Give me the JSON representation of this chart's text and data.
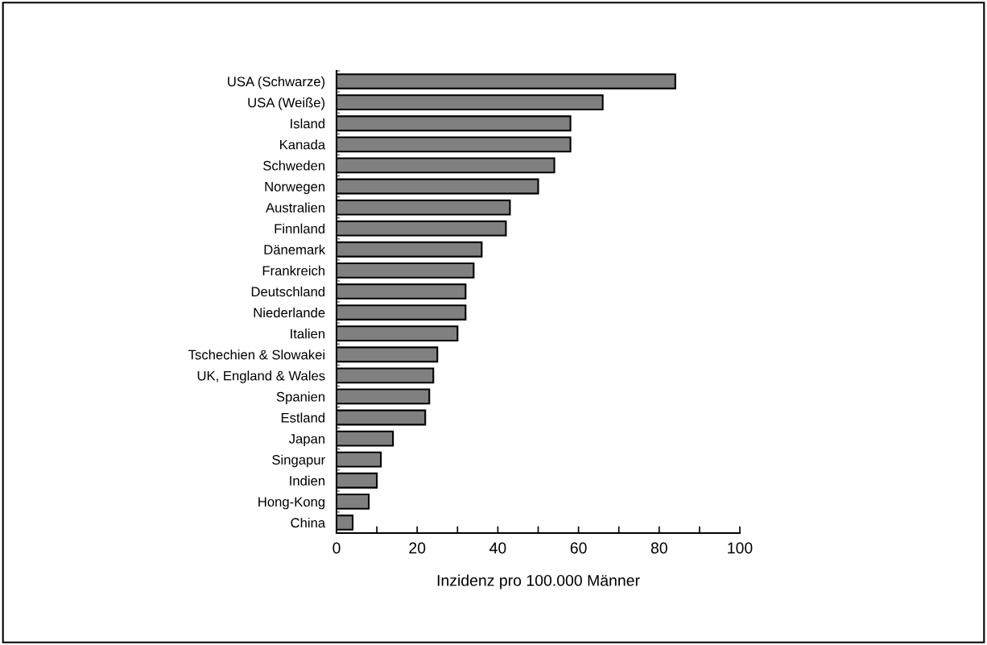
{
  "chart_data": {
    "type": "bar",
    "orientation": "horizontal",
    "xlabel": "Inzidenz pro 100.000 Männer",
    "categories": [
      "USA (Schwarze)",
      "USA (Weiße)",
      "Island",
      "Kanada",
      "Schweden",
      "Norwegen",
      "Australien",
      "Finnland",
      "Dänemark",
      "Frankreich",
      "Deutschland",
      "Niederlande",
      "Italien",
      "Tschechien & Slowakei",
      "UK, England & Wales",
      "Spanien",
      "Estland",
      "Japan",
      "Singapur",
      "Indien",
      "Hong-Kong",
      "China"
    ],
    "values": [
      84,
      66,
      58,
      58,
      54,
      50,
      43,
      42,
      36,
      34,
      32,
      32,
      30,
      25,
      24,
      23,
      22,
      14,
      11,
      10,
      8,
      4
    ],
    "color": "#808080",
    "xlim": [
      0,
      100
    ],
    "xticks": [
      0,
      {
        "value": 10,
        "label": null
      },
      20,
      {
        "value": 30,
        "label": null
      },
      40,
      {
        "value": 50,
        "label": null
      },
      60,
      {
        "value": 70,
        "label": null
      },
      80,
      {
        "value": 90,
        "label": null
      },
      100
    ],
    "grid": false,
    "legend": false
  }
}
